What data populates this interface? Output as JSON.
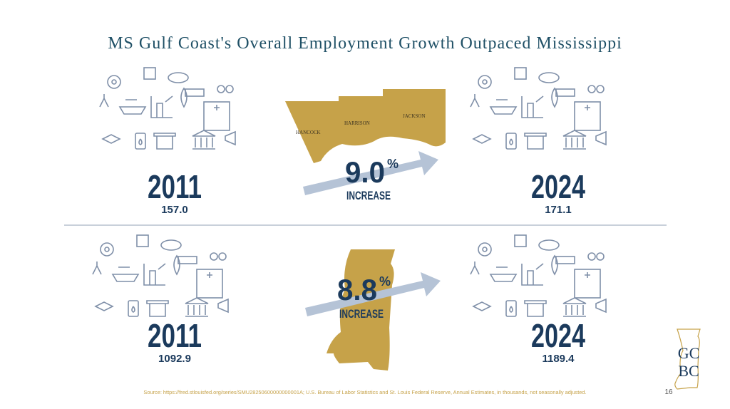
{
  "title": "MS Gulf Coast's Overall Employment Growth Outpaced Mississippi",
  "gulf_coast": {
    "start_year": "2011",
    "start_value": "157.0",
    "end_year": "2024",
    "end_value": "171.1",
    "percent": "9.0",
    "percent_sign": "%",
    "increase": "INCREASE",
    "counties": [
      "HANCOCK",
      "HARRISON",
      "JACKSON"
    ]
  },
  "mississippi": {
    "start_year": "2011",
    "start_value": "1092.9",
    "end_year": "2024",
    "end_value": "1189.4",
    "percent": "8.8",
    "percent_sign": "%",
    "increase": "INCREASE"
  },
  "source": "Source: https://fred.stlouisfed.org/series/SMU28250600000000001A; U.S. Bureau of Labor Statistics and St. Louis Federal Reserve, Annual Estimates, in thousands, not seasonally adjusted.",
  "page_number": "16",
  "logo": {
    "line1": "GC",
    "line2": "BC"
  }
}
